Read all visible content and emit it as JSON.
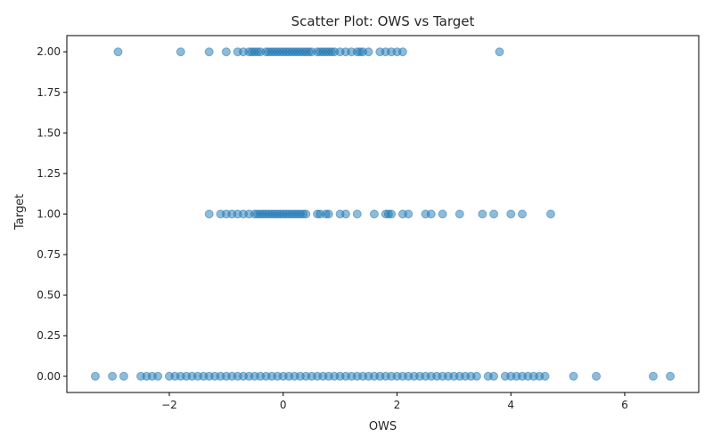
{
  "chart_data": {
    "type": "scatter",
    "title": "Scatter Plot: OWS vs Target",
    "xlabel": "OWS",
    "ylabel": "Target",
    "xlim": [
      -3.8,
      7.3
    ],
    "ylim": [
      -0.1,
      2.1
    ],
    "xticks": [
      -2,
      0,
      2,
      4,
      6
    ],
    "xtick_labels": [
      "−2",
      "0",
      "2",
      "4",
      "6"
    ],
    "yticks": [
      0.0,
      0.25,
      0.5,
      0.75,
      1.0,
      1.25,
      1.5,
      1.75,
      2.0
    ],
    "ytick_labels": [
      "0.00",
      "0.25",
      "0.50",
      "0.75",
      "1.00",
      "1.25",
      "1.50",
      "1.75",
      "2.00"
    ],
    "grid": false,
    "legend": "none",
    "marker_color": "#1f77b4",
    "marker_alpha": 0.5,
    "series": [
      {
        "x": [
          -2.9,
          -1.8,
          -1.3,
          -1.0,
          -0.8,
          -0.7,
          -0.6,
          -0.55,
          -0.5,
          -0.45,
          -0.4,
          -0.3,
          -0.25,
          -0.2,
          -0.15,
          -0.1,
          -0.05,
          0.0,
          0.05,
          0.1,
          0.15,
          0.2,
          0.25,
          0.3,
          0.35,
          0.4,
          0.45,
          0.5,
          0.6,
          0.65,
          0.7,
          0.75,
          0.8,
          0.85,
          0.9,
          1.0,
          1.1,
          1.2,
          1.3,
          1.35,
          1.4,
          1.5,
          1.7,
          1.8,
          1.9,
          2.0,
          2.1,
          3.8
        ],
        "y": [
          2,
          2,
          2,
          2,
          2,
          2,
          2,
          2,
          2,
          2,
          2,
          2,
          2,
          2,
          2,
          2,
          2,
          2,
          2,
          2,
          2,
          2,
          2,
          2,
          2,
          2,
          2,
          2,
          2,
          2,
          2,
          2,
          2,
          2,
          2,
          2,
          2,
          2,
          2,
          2,
          2,
          2,
          2,
          2,
          2,
          2,
          2,
          2
        ]
      },
      {
        "x": [
          -1.3,
          -1.1,
          -1.0,
          -0.9,
          -0.8,
          -0.7,
          -0.6,
          -0.5,
          -0.45,
          -0.4,
          -0.35,
          -0.3,
          -0.25,
          -0.2,
          -0.15,
          -0.1,
          -0.05,
          0.0,
          0.05,
          0.1,
          0.15,
          0.2,
          0.25,
          0.3,
          0.35,
          0.4,
          0.6,
          0.65,
          0.75,
          0.8,
          1.0,
          1.1,
          1.3,
          1.6,
          1.8,
          1.85,
          1.9,
          2.1,
          2.2,
          2.5,
          2.6,
          2.8,
          3.1,
          3.5,
          3.7,
          4.0,
          4.2,
          4.7
        ],
        "y": [
          1,
          1,
          1,
          1,
          1,
          1,
          1,
          1,
          1,
          1,
          1,
          1,
          1,
          1,
          1,
          1,
          1,
          1,
          1,
          1,
          1,
          1,
          1,
          1,
          1,
          1,
          1,
          1,
          1,
          1,
          1,
          1,
          1,
          1,
          1,
          1,
          1,
          1,
          1,
          1,
          1,
          1,
          1,
          1,
          1,
          1,
          1,
          1
        ]
      },
      {
        "x": [
          -3.3,
          -3.0,
          -2.8,
          -2.5,
          -2.4,
          -2.3,
          -2.2,
          -2.0,
          -1.9,
          -1.8,
          -1.7,
          -1.6,
          -1.5,
          -1.4,
          -1.3,
          -1.2,
          -1.1,
          -1.0,
          -0.9,
          -0.8,
          -0.7,
          -0.6,
          -0.5,
          -0.4,
          -0.3,
          -0.2,
          -0.1,
          0.0,
          0.1,
          0.2,
          0.3,
          0.4,
          0.5,
          0.6,
          0.7,
          0.8,
          0.9,
          1.0,
          1.1,
          1.2,
          1.3,
          1.4,
          1.5,
          1.6,
          1.7,
          1.8,
          1.9,
          2.0,
          2.1,
          2.2,
          2.3,
          2.4,
          2.5,
          2.6,
          2.7,
          2.8,
          2.9,
          3.0,
          3.1,
          3.2,
          3.3,
          3.4,
          3.6,
          3.7,
          3.9,
          4.0,
          4.1,
          4.2,
          4.3,
          4.4,
          4.5,
          4.6,
          5.1,
          5.5,
          6.5,
          6.8
        ],
        "y": [
          0,
          0,
          0,
          0,
          0,
          0,
          0,
          0,
          0,
          0,
          0,
          0,
          0,
          0,
          0,
          0,
          0,
          0,
          0,
          0,
          0,
          0,
          0,
          0,
          0,
          0,
          0,
          0,
          0,
          0,
          0,
          0,
          0,
          0,
          0,
          0,
          0,
          0,
          0,
          0,
          0,
          0,
          0,
          0,
          0,
          0,
          0,
          0,
          0,
          0,
          0,
          0,
          0,
          0,
          0,
          0,
          0,
          0,
          0,
          0,
          0,
          0,
          0,
          0,
          0,
          0,
          0,
          0,
          0,
          0,
          0,
          0,
          0,
          0,
          0,
          0
        ]
      }
    ]
  }
}
